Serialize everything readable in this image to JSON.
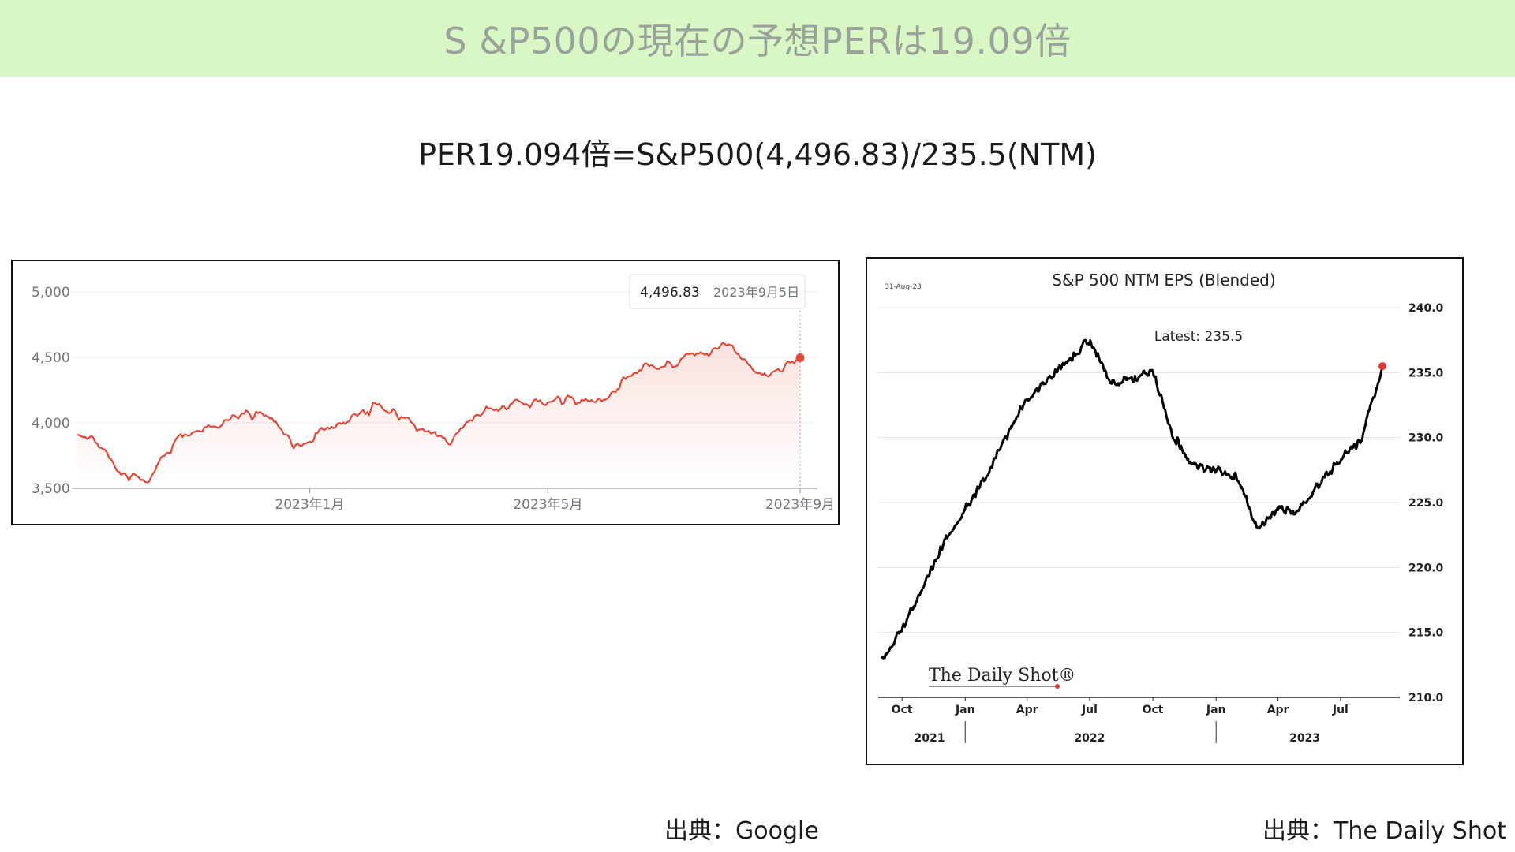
{
  "banner": {
    "title": "S &P500の現在の予想PERは19.09倍"
  },
  "formula": "PER19.094倍=S&P500(4,496.83)/235.5(NTM)",
  "sources": {
    "left": "出典：Google",
    "right": "出典：The Daily Shot"
  },
  "colors": {
    "banner_bg": "#d8f7c5",
    "price_line": "#dd4a3a",
    "eps_line": "#000000",
    "latest_dot": "#e03a32"
  },
  "chart_data": [
    {
      "type": "line",
      "title": "",
      "xlabel": "",
      "ylabel": "",
      "ylim": [
        3500,
        5000
      ],
      "y_ticks": [
        "5,000",
        "4,500",
        "4,000",
        "3,500"
      ],
      "x_tick_labels": [
        "2023年1月",
        "2023年5月",
        "2023年9月"
      ],
      "tooltip": {
        "value": "4,496.83",
        "date": "2023年9月5日"
      },
      "grid": true,
      "series": [
        {
          "x": [
            "2022-09-06",
            "2022-09-16",
            "2022-09-30",
            "2022-10-12",
            "2022-10-28",
            "2022-11-10",
            "2022-11-30",
            "2022-12-13",
            "2022-12-28",
            "2023-01-13",
            "2023-01-31",
            "2023-02-02",
            "2023-02-24",
            "2023-03-13",
            "2023-03-31",
            "2023-04-28",
            "2023-05-31",
            "2023-06-15",
            "2023-06-30",
            "2023-07-31",
            "2023-08-18",
            "2023-09-05"
          ],
          "values": [
            3910,
            3875,
            3590,
            3580,
            3900,
            3960,
            4080,
            4030,
            3790,
            4000,
            4080,
            4180,
            3970,
            3860,
            4110,
            4170,
            4180,
            4425,
            4450,
            4590,
            4370,
            4496.83
          ]
        }
      ]
    },
    {
      "type": "line",
      "title": "S&P 500 NTM EPS (Blended)",
      "date_stamp": "31-Aug-23",
      "annotation": "Latest:  235.5",
      "watermark": "The Daily Shot®",
      "ylim": [
        210,
        240
      ],
      "y_ticks": [
        "240.0",
        "235.0",
        "230.0",
        "225.0",
        "220.0",
        "215.0",
        "210.0"
      ],
      "x_tick_labels": [
        "Oct",
        "Jan",
        "Apr",
        "Jul",
        "Oct",
        "Jan",
        "Apr",
        "Jul"
      ],
      "year_labels": [
        "2021",
        "2022",
        "2023"
      ],
      "grid": true,
      "series": [
        {
          "x": [
            "2021-09-01",
            "2021-10-01",
            "2021-11-01",
            "2021-12-01",
            "2022-01-01",
            "2022-02-01",
            "2022-03-01",
            "2022-04-01",
            "2022-05-01",
            "2022-06-01",
            "2022-07-01",
            "2022-08-01",
            "2022-09-01",
            "2022-10-01",
            "2022-11-01",
            "2022-12-01",
            "2023-01-01",
            "2023-02-01",
            "2023-03-01",
            "2023-04-01",
            "2023-05-01",
            "2023-06-01",
            "2023-07-01",
            "2023-08-01",
            "2023-08-31"
          ],
          "values": [
            213.0,
            215.2,
            218.5,
            222.0,
            224.5,
            227.0,
            230.0,
            233.0,
            234.5,
            236.0,
            237.5,
            234.2,
            234.6,
            235.0,
            230.0,
            227.8,
            227.5,
            227.0,
            223.0,
            224.5,
            224.3,
            226.5,
            228.5,
            229.8,
            235.5
          ]
        }
      ]
    }
  ]
}
